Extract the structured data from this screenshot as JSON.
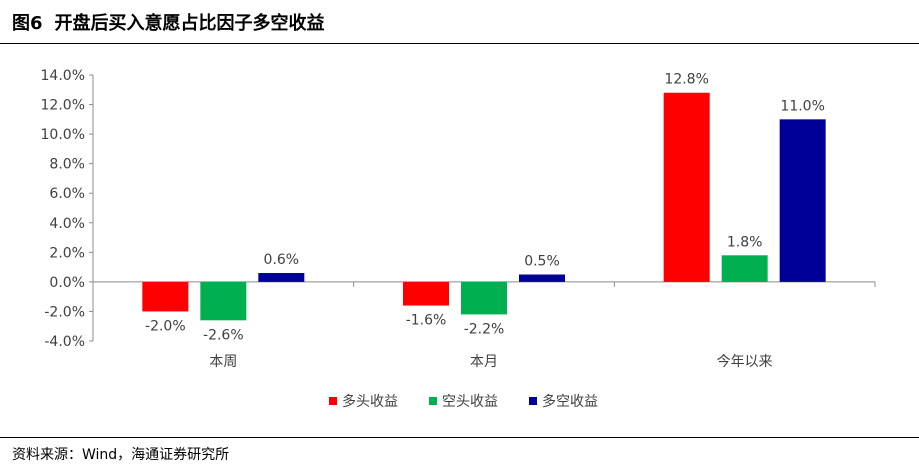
{
  "figure": {
    "number": "图6",
    "title": "开盘后买入意愿占比因子多空收益"
  },
  "source": "资料来源：Wind，海通证券研究所",
  "colors": {
    "long": "#FF0000",
    "short": "#00B050",
    "long_short": "#000099"
  },
  "chart_data": {
    "type": "bar",
    "categories": [
      "本周",
      "本月",
      "今年以来"
    ],
    "series": [
      {
        "name": "多头收益",
        "values": [
          -2.0,
          -1.6,
          12.8
        ],
        "labels": [
          "-2.0%",
          "-1.6%",
          "12.8%"
        ]
      },
      {
        "name": "空头收益",
        "values": [
          -2.6,
          -2.2,
          1.8
        ],
        "labels": [
          "-2.6%",
          "-2.2%",
          "1.8%"
        ]
      },
      {
        "name": "多空收益",
        "values": [
          0.6,
          0.5,
          11.0
        ],
        "labels": [
          "0.6%",
          "0.5%",
          "11.0%"
        ]
      }
    ],
    "yticks": [
      "14.0%",
      "12.0%",
      "10.0%",
      "8.0%",
      "6.0%",
      "4.0%",
      "2.0%",
      "0.0%",
      "-2.0%",
      "-4.0%"
    ],
    "ylim": [
      -4.0,
      14.0
    ],
    "legend_position": "bottom",
    "grid": false
  }
}
